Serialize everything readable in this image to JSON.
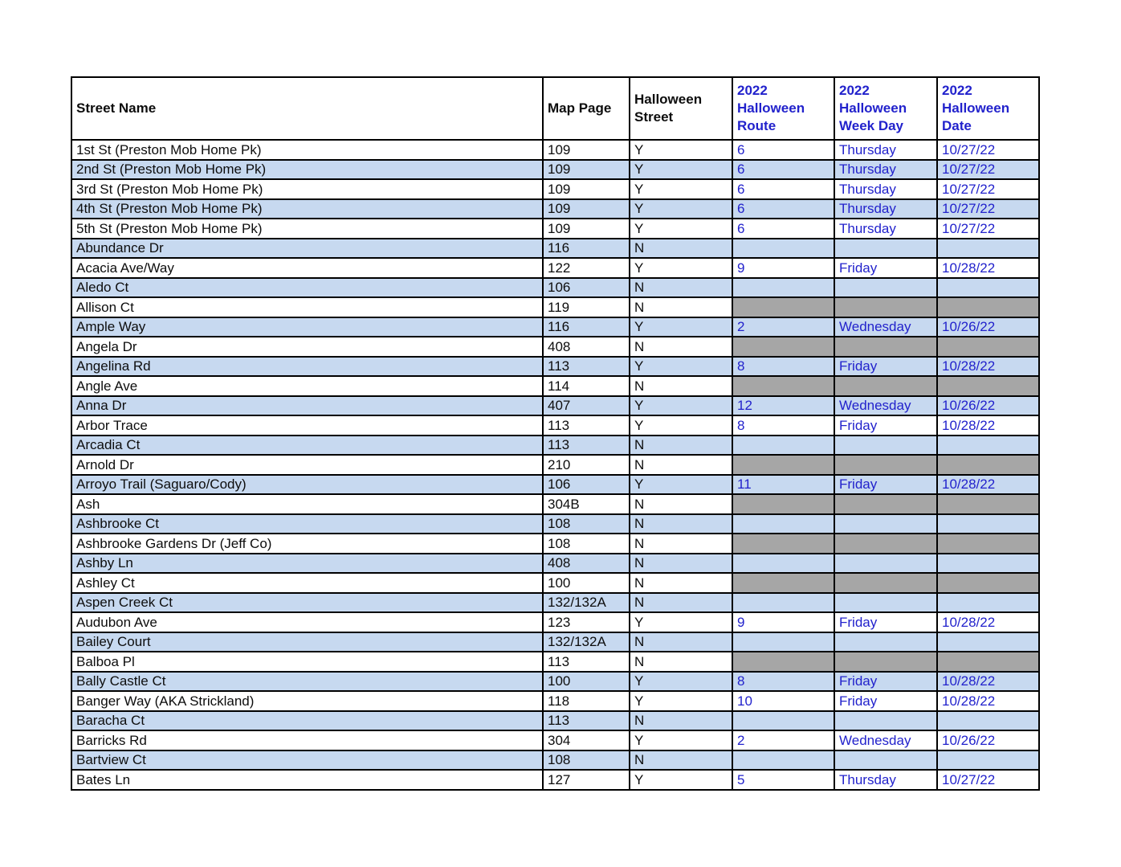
{
  "colors": {
    "blue_text": "#2222cc",
    "alt_row_fill": "#c7d9f0",
    "empty_gray_fill": "#a6a6a6",
    "border": "#000000",
    "black_text": "#0d0d0d"
  },
  "table": {
    "columns": [
      {
        "label": "Street Name"
      },
      {
        "label": "Map Page"
      },
      {
        "label": "Halloween Street"
      },
      {
        "label": "2022 Halloween Route"
      },
      {
        "label": "2022 Halloween Week Day"
      },
      {
        "label": "2022 Halloween Date"
      }
    ],
    "rows": [
      {
        "street": "1st St (Preston Mob Home Pk)",
        "map_page": "109",
        "halloween_street": "Y",
        "route": "6",
        "week_day": "Thursday",
        "date": "10/27/22",
        "shade": "white",
        "gray_empty": false
      },
      {
        "street": "2nd St (Preston Mob Home Pk)",
        "map_page": "109",
        "halloween_street": "Y",
        "route": "6",
        "week_day": "Thursday",
        "date": "10/27/22",
        "shade": "blue",
        "gray_empty": false
      },
      {
        "street": "3rd St (Preston Mob Home Pk)",
        "map_page": "109",
        "halloween_street": "Y",
        "route": "6",
        "week_day": "Thursday",
        "date": "10/27/22",
        "shade": "white",
        "gray_empty": false
      },
      {
        "street": "4th St (Preston Mob Home Pk)",
        "map_page": "109",
        "halloween_street": "Y",
        "route": "6",
        "week_day": "Thursday",
        "date": "10/27/22",
        "shade": "blue",
        "gray_empty": false
      },
      {
        "street": "5th St (Preston Mob Home Pk)",
        "map_page": "109",
        "halloween_street": "Y",
        "route": "6",
        "week_day": "Thursday",
        "date": "10/27/22",
        "shade": "white",
        "gray_empty": false
      },
      {
        "street": "Abundance Dr",
        "map_page": "116",
        "halloween_street": "N",
        "route": "",
        "week_day": "",
        "date": "",
        "shade": "blue",
        "gray_empty": false
      },
      {
        "street": "Acacia Ave/Way",
        "map_page": "122",
        "halloween_street": "Y",
        "route": "9",
        "week_day": "Friday",
        "date": "10/28/22",
        "shade": "white",
        "gray_empty": false
      },
      {
        "street": "Aledo Ct",
        "map_page": "106",
        "halloween_street": "N",
        "route": "",
        "week_day": "",
        "date": "",
        "shade": "blue",
        "gray_empty": false
      },
      {
        "street": "Allison Ct",
        "map_page": "119",
        "halloween_street": "N",
        "route": "",
        "week_day": "",
        "date": "",
        "shade": "white",
        "gray_empty": true
      },
      {
        "street": "Ample Way",
        "map_page": "116",
        "halloween_street": "Y",
        "route": "2",
        "week_day": "Wednesday",
        "date": "10/26/22",
        "shade": "blue",
        "gray_empty": false
      },
      {
        "street": "Angela Dr",
        "map_page": "408",
        "halloween_street": "N",
        "route": "",
        "week_day": "",
        "date": "",
        "shade": "white",
        "gray_empty": true
      },
      {
        "street": "Angelina Rd",
        "map_page": "113",
        "halloween_street": "Y",
        "route": "8",
        "week_day": "Friday",
        "date": "10/28/22",
        "shade": "blue",
        "gray_empty": false
      },
      {
        "street": "Angle Ave",
        "map_page": "114",
        "halloween_street": "N",
        "route": "",
        "week_day": "",
        "date": "",
        "shade": "white",
        "gray_empty": true
      },
      {
        "street": "Anna Dr",
        "map_page": "407",
        "halloween_street": "Y",
        "route": "12",
        "week_day": "Wednesday",
        "date": "10/26/22",
        "shade": "blue",
        "gray_empty": false
      },
      {
        "street": "Arbor Trace",
        "map_page": "113",
        "halloween_street": "Y",
        "route": "8",
        "week_day": "Friday",
        "date": "10/28/22",
        "shade": "white",
        "gray_empty": false
      },
      {
        "street": "Arcadia Ct",
        "map_page": "113",
        "halloween_street": "N",
        "route": "",
        "week_day": "",
        "date": "",
        "shade": "blue",
        "gray_empty": false
      },
      {
        "street": "Arnold Dr",
        "map_page": "210",
        "halloween_street": "N",
        "route": "",
        "week_day": "",
        "date": "",
        "shade": "white",
        "gray_empty": true
      },
      {
        "street": "Arroyo Trail (Saguaro/Cody)",
        "map_page": "106",
        "halloween_street": "Y",
        "route": "11",
        "week_day": "Friday",
        "date": "10/28/22",
        "shade": "blue",
        "gray_empty": false
      },
      {
        "street": "Ash",
        "map_page": "304B",
        "halloween_street": "N",
        "route": "",
        "week_day": "",
        "date": "",
        "shade": "white",
        "gray_empty": true
      },
      {
        "street": "Ashbrooke Ct",
        "map_page": "108",
        "halloween_street": "N",
        "route": "",
        "week_day": "",
        "date": "",
        "shade": "blue",
        "gray_empty": false
      },
      {
        "street": "Ashbrooke Gardens Dr (Jeff Co)",
        "map_page": "108",
        "halloween_street": "N",
        "route": "",
        "week_day": "",
        "date": "",
        "shade": "white",
        "gray_empty": true
      },
      {
        "street": "Ashby Ln",
        "map_page": "408",
        "halloween_street": "N",
        "route": "",
        "week_day": "",
        "date": "",
        "shade": "blue",
        "gray_empty": false
      },
      {
        "street": "Ashley Ct",
        "map_page": "100",
        "halloween_street": "N",
        "route": "",
        "week_day": "",
        "date": "",
        "shade": "white",
        "gray_empty": true
      },
      {
        "street": "Aspen Creek Ct",
        "map_page": "132/132A",
        "halloween_street": "N",
        "route": "",
        "week_day": "",
        "date": "",
        "shade": "blue",
        "gray_empty": false
      },
      {
        "street": "Audubon Ave",
        "map_page": "123",
        "halloween_street": "Y",
        "route": "9",
        "week_day": "Friday",
        "date": "10/28/22",
        "shade": "white",
        "gray_empty": false
      },
      {
        "street": "Bailey Court",
        "map_page": "132/132A",
        "halloween_street": "N",
        "route": "",
        "week_day": "",
        "date": "",
        "shade": "blue",
        "gray_empty": false
      },
      {
        "street": "Balboa Pl",
        "map_page": "113",
        "halloween_street": "N",
        "route": "",
        "week_day": "",
        "date": "",
        "shade": "white",
        "gray_empty": true
      },
      {
        "street": "Bally Castle Ct",
        "map_page": "100",
        "halloween_street": "Y",
        "route": "8",
        "week_day": "Friday",
        "date": "10/28/22",
        "shade": "blue",
        "gray_empty": false
      },
      {
        "street": "Banger Way (AKA Strickland)",
        "map_page": "118",
        "halloween_street": "Y",
        "route": "10",
        "week_day": "Friday",
        "date": "10/28/22",
        "shade": "white",
        "gray_empty": false
      },
      {
        "street": "Baracha Ct",
        "map_page": "113",
        "halloween_street": "N",
        "route": "",
        "week_day": "",
        "date": "",
        "shade": "blue",
        "gray_empty": false
      },
      {
        "street": "Barricks Rd",
        "map_page": "304",
        "halloween_street": "Y",
        "route": "2",
        "week_day": "Wednesday",
        "date": "10/26/22",
        "shade": "white",
        "gray_empty": false
      },
      {
        "street": "Bartview Ct",
        "map_page": "108",
        "halloween_street": "N",
        "route": "",
        "week_day": "",
        "date": "",
        "shade": "blue",
        "gray_empty": false
      },
      {
        "street": "Bates Ln",
        "map_page": "127",
        "halloween_street": "Y",
        "route": "5",
        "week_day": "Thursday",
        "date": "10/27/22",
        "shade": "white",
        "gray_empty": false
      }
    ]
  }
}
